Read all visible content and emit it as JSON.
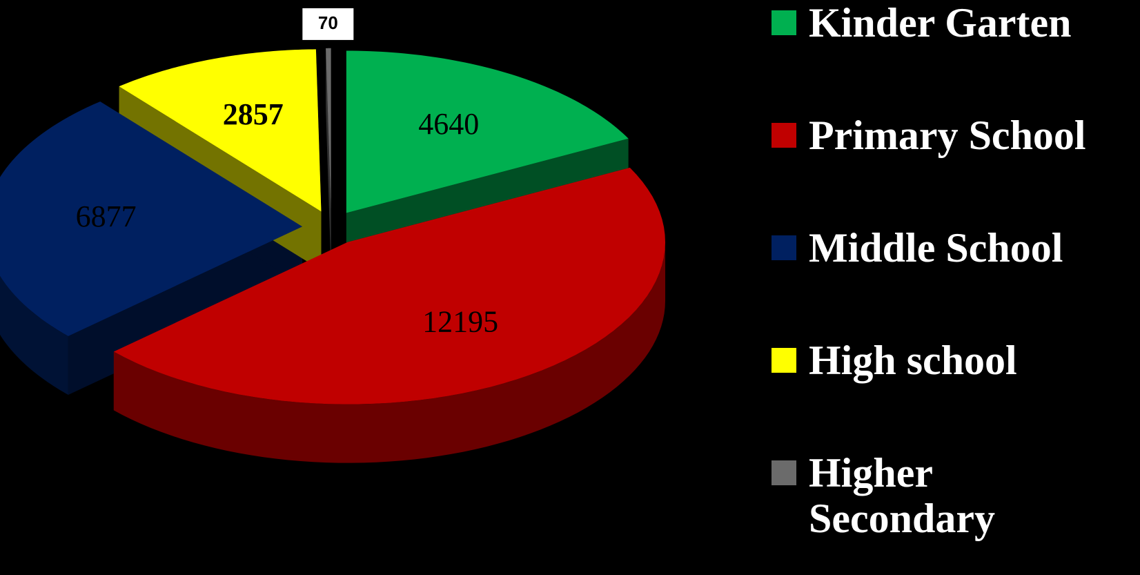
{
  "chart_data": {
    "type": "pie",
    "categories": [
      "Kinder Garten",
      "Primary School",
      "Middle School",
      "High school",
      "Higher Secondary"
    ],
    "values": [
      4640,
      12195,
      6877,
      2857,
      70
    ],
    "colors": [
      "#00b050",
      "#c00000",
      "#002060",
      "#ffff00",
      "#6b6b6b"
    ],
    "legend": "right"
  }
}
